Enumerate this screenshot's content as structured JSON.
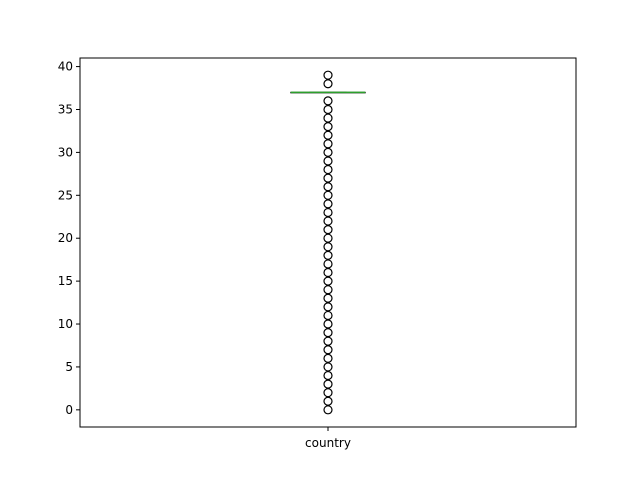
{
  "chart_data": {
    "type": "box",
    "title": "",
    "xlabel": "",
    "ylabel": "",
    "categories": [
      "country"
    ],
    "ylim": [
      -2,
      41
    ],
    "yticks": [
      0,
      5,
      10,
      15,
      20,
      25,
      30,
      35,
      40
    ],
    "grid": false,
    "boxes": [
      {
        "category": "country",
        "q1": 37,
        "median": 37,
        "q3": 37,
        "whisker_low": 37,
        "whisker_high": 37,
        "outliers": [
          0,
          1,
          2,
          3,
          4,
          5,
          6,
          7,
          8,
          9,
          10,
          11,
          12,
          13,
          14,
          15,
          16,
          17,
          18,
          19,
          20,
          21,
          22,
          23,
          24,
          25,
          26,
          27,
          28,
          29,
          30,
          31,
          32,
          33,
          34,
          35,
          36,
          38,
          39
        ],
        "median_color": "#2ca02c"
      }
    ]
  }
}
